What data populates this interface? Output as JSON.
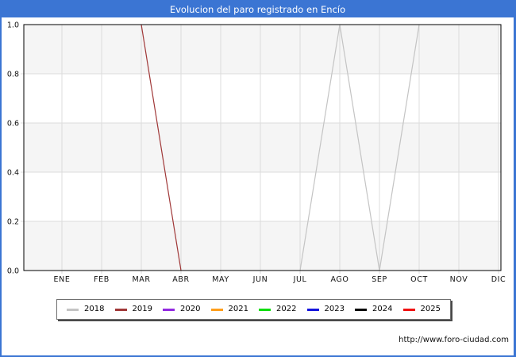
{
  "window": {
    "title": "Evolucion del paro registrado en Encío"
  },
  "chart_data": {
    "type": "line",
    "title": "Evolucion del paro registrado en Encío",
    "xlabel": "",
    "ylabel": "",
    "categories": [
      "ENE",
      "FEB",
      "MAR",
      "ABR",
      "MAY",
      "JUN",
      "JUL",
      "AGO",
      "SEP",
      "OCT",
      "NOV",
      "DIC"
    ],
    "ylim": [
      0.0,
      1.0
    ],
    "ytick_labels": [
      "0.0",
      "0.2",
      "0.4",
      "0.6",
      "0.8",
      "1.0"
    ],
    "grid": true,
    "band_fill": true,
    "legend_position": "bottom",
    "series": [
      {
        "name": "2018",
        "color": "#c4c4c4",
        "values": [
          null,
          null,
          null,
          null,
          null,
          null,
          0,
          1,
          0,
          1,
          null,
          null
        ]
      },
      {
        "name": "2019",
        "color": "#a03838",
        "values": [
          null,
          null,
          1,
          0,
          null,
          null,
          null,
          null,
          null,
          null,
          null,
          null
        ]
      },
      {
        "name": "2020",
        "color": "#9229e0",
        "values": [
          null,
          null,
          null,
          null,
          null,
          null,
          null,
          null,
          null,
          null,
          null,
          null
        ]
      },
      {
        "name": "2021",
        "color": "#ff9e1b",
        "values": [
          null,
          null,
          null,
          null,
          null,
          null,
          null,
          null,
          null,
          null,
          null,
          null
        ]
      },
      {
        "name": "2022",
        "color": "#0fdd0f",
        "values": [
          null,
          null,
          null,
          null,
          null,
          null,
          null,
          null,
          null,
          null,
          null,
          null
        ]
      },
      {
        "name": "2023",
        "color": "#1414dd",
        "values": [
          null,
          null,
          null,
          null,
          null,
          null,
          null,
          null,
          null,
          null,
          null,
          null
        ]
      },
      {
        "name": "2024",
        "color": "#000000",
        "values": [
          null,
          null,
          null,
          null,
          null,
          null,
          null,
          null,
          null,
          null,
          null,
          null
        ]
      },
      {
        "name": "2025",
        "color": "#f01111",
        "values": [
          null,
          null,
          null,
          null,
          null,
          null,
          null,
          null,
          null,
          null,
          null,
          null
        ]
      }
    ]
  },
  "colors": {
    "titlebar": "#3b75d3",
    "frame_border": "#3b75d3",
    "plot_band": "#f5f5f5",
    "gridline": "#dcdcdc",
    "plot_frame": "#000000",
    "tick_text": "#111111"
  },
  "footer": {
    "url": "http://www.foro-ciudad.com"
  }
}
